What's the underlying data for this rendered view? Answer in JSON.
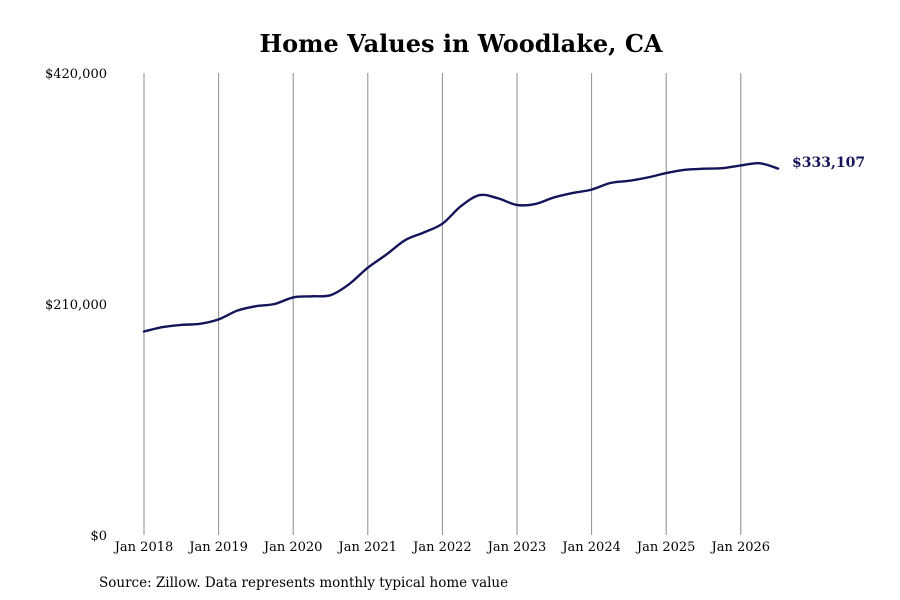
{
  "chart_data": {
    "type": "line",
    "title": "Home Values in Woodlake, CA",
    "xlabel": "",
    "ylabel": "",
    "ylim": [
      0,
      420000
    ],
    "yticks": [
      {
        "value": 0,
        "label": "$0"
      },
      {
        "value": 210000,
        "label": "$210,000"
      },
      {
        "value": 420000,
        "label": "$420,000"
      }
    ],
    "xlim": [
      "2018-01",
      "2026-07"
    ],
    "xticks": [
      {
        "date": "2018-01",
        "label": "Jan 2018"
      },
      {
        "date": "2019-01",
        "label": "Jan 2019"
      },
      {
        "date": "2020-01",
        "label": "Jan 2020"
      },
      {
        "date": "2021-01",
        "label": "Jan 2021"
      },
      {
        "date": "2022-01",
        "label": "Jan 2022"
      },
      {
        "date": "2023-01",
        "label": "Jan 2023"
      },
      {
        "date": "2024-01",
        "label": "Jan 2024"
      },
      {
        "date": "2025-01",
        "label": "Jan 2025"
      },
      {
        "date": "2026-01",
        "label": "Jan 2026"
      }
    ],
    "grid": {
      "vertical": true,
      "horizontal": false
    },
    "line_color": "#14145a",
    "series": [
      {
        "x": [
          "2018-01",
          "2018-04",
          "2018-07",
          "2018-10",
          "2019-01",
          "2019-04",
          "2019-07",
          "2019-10",
          "2020-01",
          "2020-04",
          "2020-07",
          "2020-10",
          "2021-01",
          "2021-04",
          "2021-07",
          "2021-10",
          "2022-01",
          "2022-04",
          "2022-07",
          "2022-10",
          "2023-01",
          "2023-04",
          "2023-07",
          "2023-10",
          "2024-01",
          "2024-04",
          "2024-07",
          "2024-10",
          "2025-01",
          "2025-04",
          "2025-07",
          "2025-10",
          "2026-01",
          "2026-04",
          "2026-07"
        ],
        "y": [
          185000,
          189000,
          191000,
          192000,
          196000,
          204000,
          208000,
          210000,
          216000,
          217000,
          218000,
          228000,
          243000,
          255000,
          268000,
          275000,
          283000,
          299000,
          309000,
          306000,
          300000,
          301000,
          307000,
          311000,
          314000,
          320000,
          322000,
          325000,
          329000,
          332000,
          333000,
          333500,
          336000,
          338000,
          333107
        ]
      }
    ],
    "end_label": "$333,107",
    "source": "Source: Zillow. Data represents monthly typical home value"
  }
}
